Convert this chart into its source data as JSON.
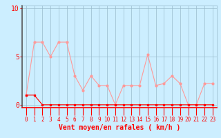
{
  "x": [
    0,
    1,
    2,
    3,
    4,
    5,
    6,
    7,
    8,
    9,
    10,
    11,
    12,
    13,
    14,
    15,
    16,
    17,
    18,
    19,
    20,
    21,
    22,
    23
  ],
  "y_gust": [
    1.0,
    6.5,
    6.5,
    5.0,
    6.5,
    6.5,
    3.0,
    1.5,
    3.0,
    2.0,
    2.0,
    0.0,
    2.0,
    2.0,
    2.0,
    5.2,
    2.0,
    2.2,
    3.0,
    2.2,
    0.0,
    0.0,
    2.2,
    2.2
  ],
  "y_mean": [
    1.0,
    1.0,
    0.0,
    0.0,
    0.0,
    0.0,
    0.0,
    0.0,
    0.0,
    0.0,
    0.0,
    0.0,
    0.0,
    0.0,
    0.0,
    0.0,
    0.0,
    0.0,
    0.0,
    0.0,
    0.0,
    0.0,
    0.0,
    0.0
  ],
  "gust_color": "#ff9999",
  "mean_color": "#ff0000",
  "bg_color": "#cceeff",
  "grid_color": "#99bbcc",
  "spine_left_color": "#555555",
  "spine_color": "#ff0000",
  "tick_color": "#ff0000",
  "xlabel": "Vent moyen/en rafales ( km/h )",
  "xlabel_color": "#ff0000",
  "ytick_labels": [
    "0",
    "5",
    "10"
  ],
  "ytick_vals": [
    0,
    5,
    10
  ],
  "ylim": [
    -0.3,
    10.3
  ],
  "xlim": [
    -0.5,
    23.5
  ]
}
